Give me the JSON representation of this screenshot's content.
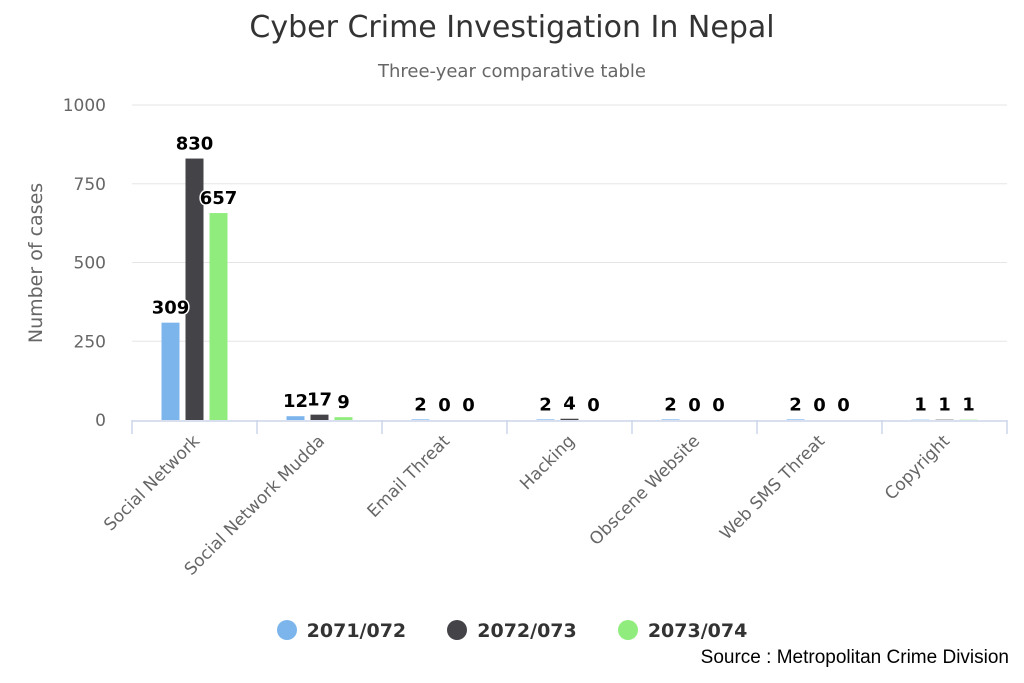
{
  "chart_data": {
    "type": "bar",
    "title": "Cyber Crime Investigation In Nepal",
    "subtitle": "Three-year comparative table",
    "ylabel": "Number of cases",
    "xlabel": "",
    "ylim": [
      0,
      1000
    ],
    "yticks": [
      "0",
      "250",
      "500",
      "750",
      "1000"
    ],
    "categories": [
      "Social Network",
      "Social Network Mudda",
      "Email Threat",
      "Hacking",
      "Obscene Website",
      "Web SMS Threat",
      "Copyright"
    ],
    "series": [
      {
        "name": "2071/072",
        "color": "#7cb5ec",
        "values": [
          309,
          12,
          2,
          2,
          2,
          2,
          1
        ]
      },
      {
        "name": "2072/073",
        "color": "#434348",
        "values": [
          830,
          17,
          0,
          4,
          0,
          0,
          1
        ]
      },
      {
        "name": "2073/074",
        "color": "#90ed7d",
        "values": [
          657,
          9,
          0,
          0,
          0,
          0,
          1
        ]
      }
    ],
    "grid": true,
    "legend": "bottom"
  },
  "source": "Source : Metropolitan Crime Division"
}
